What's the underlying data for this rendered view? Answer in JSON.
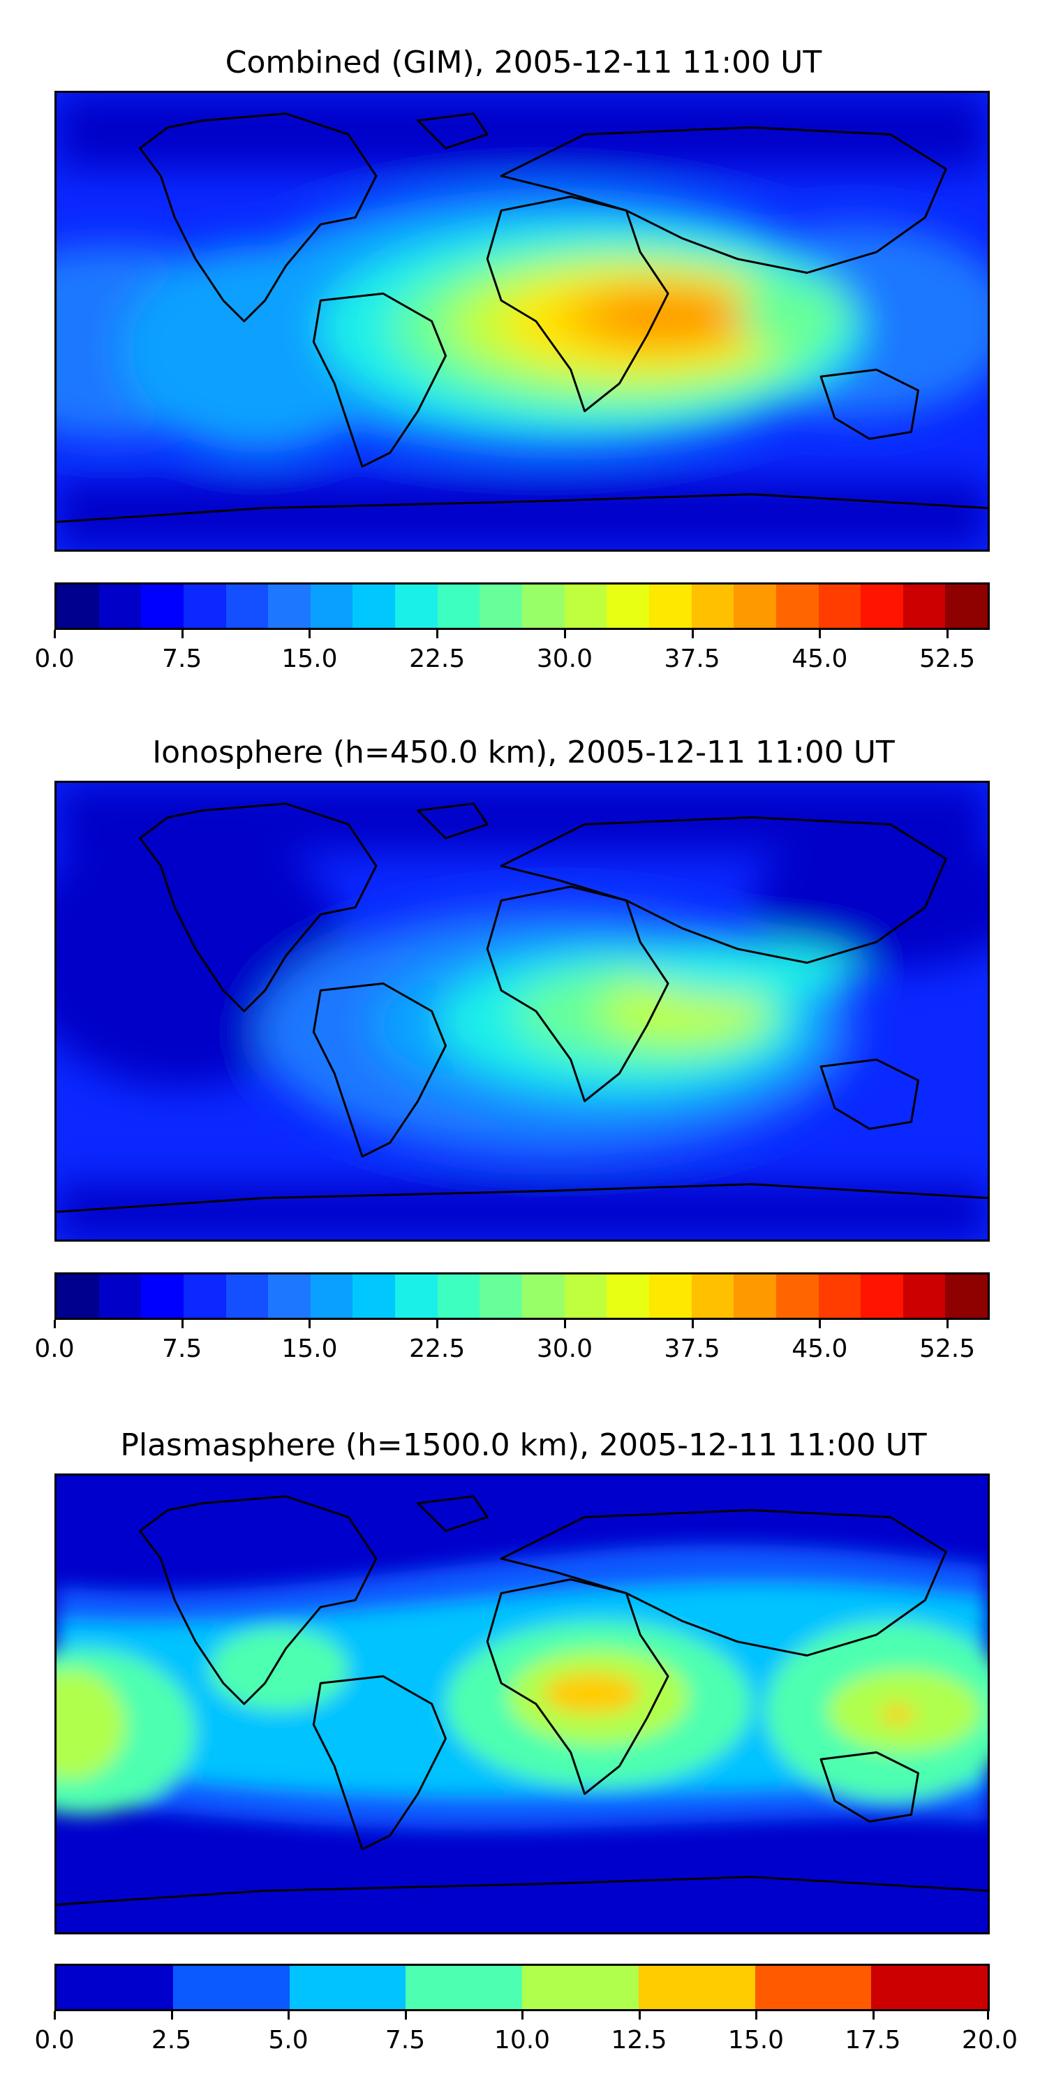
{
  "panels": [
    {
      "title": "Combined (GIM), 2005-12-11 11:00 UT",
      "colorbar": {
        "colors": [
          "#00008f",
          "#0000c8",
          "#0000ff",
          "#0a28ff",
          "#1450ff",
          "#1e78ff",
          "#0aa0ff",
          "#00c8ff",
          "#1af0e8",
          "#3dffc0",
          "#66ff99",
          "#99ff66",
          "#c0ff3d",
          "#e8ff14",
          "#ffe800",
          "#ffc000",
          "#ff9900",
          "#ff6600",
          "#ff3d00",
          "#ff1400",
          "#cc0000",
          "#8f0000"
        ],
        "ticks": [
          "0.0",
          "7.5",
          "15.0",
          "22.5",
          "30.0",
          "37.5",
          "45.0",
          "52.5"
        ],
        "tick_values": [
          0,
          7.5,
          15,
          22.5,
          30,
          37.5,
          45,
          52.5
        ],
        "range": [
          0,
          55
        ]
      }
    },
    {
      "title": "Ionosphere  (h=450.0 km), 2005-12-11 11:00 UT",
      "colorbar": {
        "colors": [
          "#00008f",
          "#0000c8",
          "#0000ff",
          "#0a28ff",
          "#1450ff",
          "#1e78ff",
          "#0aa0ff",
          "#00c8ff",
          "#1af0e8",
          "#3dffc0",
          "#66ff99",
          "#99ff66",
          "#c0ff3d",
          "#e8ff14",
          "#ffe800",
          "#ffc000",
          "#ff9900",
          "#ff6600",
          "#ff3d00",
          "#ff1400",
          "#cc0000",
          "#8f0000"
        ],
        "ticks": [
          "0.0",
          "7.5",
          "15.0",
          "22.5",
          "30.0",
          "37.5",
          "45.0",
          "52.5"
        ],
        "tick_values": [
          0,
          7.5,
          15,
          22.5,
          30,
          37.5,
          45,
          52.5
        ],
        "range": [
          0,
          55
        ]
      }
    },
    {
      "title": "Plasmasphere (h=1500.0 km), 2005-12-11 11:00 UT",
      "colorbar": {
        "colors": [
          "#0000cc",
          "#0a5aff",
          "#00c3ff",
          "#4dffb0",
          "#b0ff4d",
          "#ffcc00",
          "#ff5a00",
          "#cc0000"
        ],
        "ticks": [
          "0.0",
          "2.5",
          "5.0",
          "7.5",
          "10.0",
          "12.5",
          "15.0",
          "17.5",
          "20.0"
        ],
        "tick_values": [
          0,
          2.5,
          5,
          7.5,
          10,
          12.5,
          15,
          17.5,
          20
        ],
        "range": [
          0,
          20
        ]
      }
    }
  ]
}
